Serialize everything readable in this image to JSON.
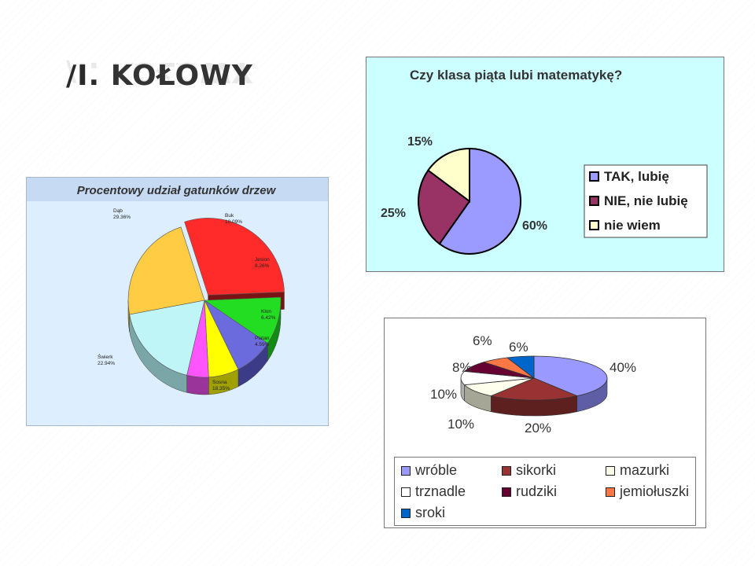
{
  "slide": {
    "title_prefix": "/I.",
    "title_main": "KOŁOWY"
  },
  "chart_data": [
    {
      "type": "pie",
      "title": "Procentowy udział gatunków drzew",
      "categories": [
        "Dąb",
        "Buk",
        "Jesion",
        "Klon",
        "Platan",
        "Sosna",
        "Świerk"
      ],
      "values": [
        29.36,
        10.09,
        8.26,
        6.42,
        4.59,
        18.35,
        22.94
      ],
      "value_labels": [
        "29.36%",
        "10.09%",
        "8.26%",
        "6.42%",
        "4.59%",
        "18.35%",
        "22.94%"
      ],
      "colors": [
        "#ff2a2a",
        "#22dd22",
        "#6b6bdd",
        "#ffff00",
        "#ff55ff",
        "#bff5f7",
        "#ffcc44"
      ],
      "side_colors": [
        "#7a1414",
        "#138a13",
        "#3b3b88",
        "#a0a000",
        "#9a339a",
        "#7aa6a8",
        "#b08a22"
      ],
      "background": "#ddeeff",
      "three_d": true
    },
    {
      "type": "pie",
      "title": "Czy klasa piąta lubi matematykę?",
      "categories": [
        "TAK, lubię",
        "NIE, nie lubię",
        "nie wiem"
      ],
      "values": [
        60,
        25,
        15
      ],
      "value_labels": [
        "60%",
        "25%",
        "15%"
      ],
      "colors": [
        "#9a9aff",
        "#993366",
        "#ffffcc"
      ],
      "background": "#ccffff",
      "legend": "right"
    },
    {
      "type": "pie",
      "categories": [
        "wróble",
        "sikorki",
        "mazurki",
        "trznadle",
        "rudziki",
        "jemiołuszki",
        "sroki"
      ],
      "values": [
        40,
        20,
        10,
        10,
        8,
        6,
        6
      ],
      "value_labels": [
        "40%",
        "20%",
        "10%",
        "10%",
        "8%",
        "6%",
        "6%"
      ],
      "colors": [
        "#9999ff",
        "#993333",
        "#ffffee",
        "#ffffff",
        "#660033",
        "#ff7744",
        "#0066cc"
      ],
      "side_colors": [
        "#5e5ea6",
        "#5e1f1f",
        "#a6a696",
        "#b0b0b0",
        "#3a001c",
        "#a64b2a",
        "#003f80"
      ],
      "background": "#ffffff",
      "three_d": true,
      "legend": "bottom"
    }
  ]
}
